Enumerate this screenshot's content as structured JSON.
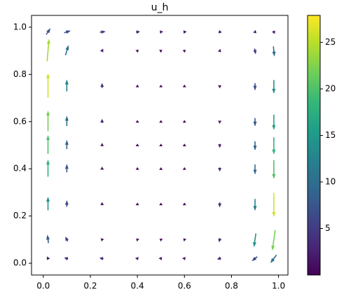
{
  "chart_data": {
    "type": "quiver",
    "title": "u_h",
    "x": [
      0.02,
      0.1,
      0.25,
      0.4,
      0.5,
      0.6,
      0.75,
      0.9,
      0.98
    ],
    "y": [
      0.02,
      0.1,
      0.25,
      0.4,
      0.5,
      0.6,
      0.75,
      0.9,
      0.98
    ],
    "u": [
      [
        -1,
        -3,
        -3,
        -2,
        -2,
        -2,
        -3,
        -5,
        -6
      ],
      [
        -1,
        -2,
        -1,
        -0.5,
        -0.5,
        -0.5,
        -1,
        -2,
        -3
      ],
      [
        0,
        0,
        0,
        0,
        0,
        0,
        0,
        0,
        0
      ],
      [
        0,
        0,
        0,
        0,
        0,
        0,
        0,
        0,
        0
      ],
      [
        0,
        0,
        0,
        0,
        0,
        0,
        0,
        0,
        0
      ],
      [
        0,
        0,
        0,
        0,
        0,
        0,
        0,
        0,
        0
      ],
      [
        0,
        0,
        0,
        0,
        0,
        0,
        0,
        0,
        0
      ],
      [
        2,
        3,
        1,
        0.5,
        0.5,
        0.5,
        1,
        1,
        1
      ],
      [
        4,
        6,
        5,
        3,
        2,
        2,
        2,
        1,
        1
      ]
    ],
    "v": [
      [
        2,
        1,
        0.5,
        0.3,
        0.2,
        0.3,
        -1,
        -4,
        -8
      ],
      [
        8,
        4,
        1,
        0.5,
        0.3,
        0.5,
        -3,
        -14,
        -22
      ],
      [
        14,
        6,
        2,
        0.5,
        0.3,
        0.5,
        -4,
        -12,
        -26
      ],
      [
        18,
        8,
        2,
        0.5,
        0.3,
        0.5,
        -3,
        -10,
        -20
      ],
      [
        20,
        9,
        2,
        0.5,
        0.3,
        0.5,
        -3,
        -9,
        -18
      ],
      [
        22,
        10,
        3,
        0.5,
        0.3,
        0.5,
        -2,
        -8,
        -16
      ],
      [
        26,
        12,
        4,
        0.5,
        0.3,
        0.5,
        -2,
        -7,
        -14
      ],
      [
        24,
        10,
        2,
        0.5,
        0.3,
        0.5,
        -1,
        -5,
        -10
      ],
      [
        6,
        2,
        0.5,
        0.3,
        0.2,
        0.2,
        -0.3,
        -1,
        -2
      ]
    ],
    "xlim": [
      -0.05,
      1.04
    ],
    "ylim": [
      -0.05,
      1.05
    ],
    "xticks": [
      {
        "value": 0,
        "label": "0.0"
      },
      {
        "value": 0.2,
        "label": "0.2"
      },
      {
        "value": 0.4,
        "label": "0.4"
      },
      {
        "value": 0.6,
        "label": "0.6"
      },
      {
        "value": 0.8,
        "label": "0.8"
      },
      {
        "value": 1,
        "label": "1.0"
      }
    ],
    "yticks": [
      {
        "value": 0,
        "label": "0.0"
      },
      {
        "value": 0.2,
        "label": "0.2"
      },
      {
        "value": 0.4,
        "label": "0.4"
      },
      {
        "value": 0.6,
        "label": "0.6"
      },
      {
        "value": 0.8,
        "label": "0.8"
      },
      {
        "value": 1,
        "label": "1.0"
      }
    ],
    "colormap": "viridis",
    "clim": [
      0,
      27.9
    ],
    "cticks": [
      5,
      10,
      15,
      20,
      25
    ]
  }
}
